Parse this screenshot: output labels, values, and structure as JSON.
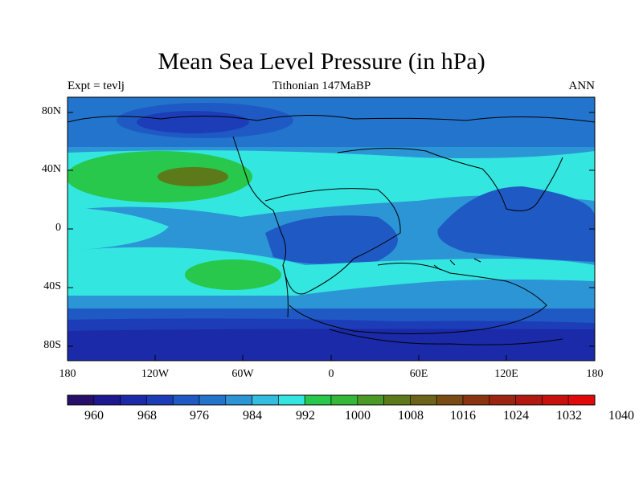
{
  "title": "Mean Sea Level Pressure (in hPa)",
  "subtitle_left": "Expt = tevlj",
  "subtitle_center": "Tithonian 147MaBP",
  "subtitle_right": "ANN",
  "map": {
    "y_ticks": [
      "80N",
      "40N",
      "0",
      "40S",
      "80S"
    ],
    "x_ticks": [
      "180",
      "120W",
      "60W",
      "0",
      "60E",
      "120E",
      "180"
    ]
  },
  "colorbar": {
    "labels": [
      "960",
      "968",
      "976",
      "984",
      "992",
      "1000",
      "1008",
      "1016",
      "1024",
      "1032",
      "1040"
    ],
    "colors": [
      "#27106a",
      "#1e1890",
      "#1a2aa8",
      "#1d3db8",
      "#1f5ac4",
      "#2374cc",
      "#2c95d6",
      "#33bde0",
      "#33e6e0",
      "#27c84c",
      "#35b838",
      "#4b9a26",
      "#5d7a1a",
      "#6e6418",
      "#7a4c14",
      "#8a3410",
      "#9c2410",
      "#b01810",
      "#c8100c",
      "#e00808"
    ]
  },
  "colors": {
    "ocean_low": "#1e1890",
    "ocean_mid": "#2374cc",
    "band_light": "#2c95d6",
    "band_cyan": "#33e6e0",
    "high_green": "#27c84c",
    "high_olive": "#5d7a1a"
  }
}
